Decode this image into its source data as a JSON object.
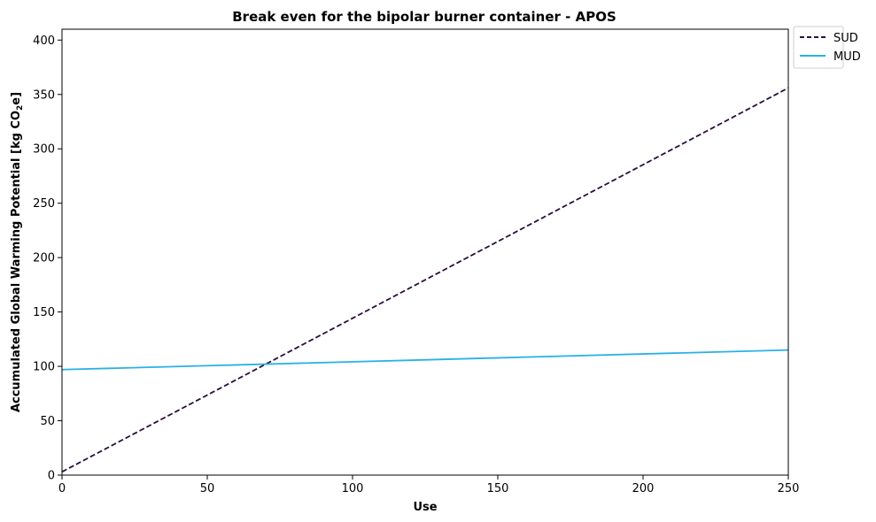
{
  "chart_data": {
    "type": "line",
    "title": "Break even for the bipolar burner container - APOS",
    "xlabel": "Use",
    "ylabel_main": "Accumulated Global Warming Potential [kg CO",
    "ylabel_sub": "2",
    "ylabel_end": "e]",
    "xlim": [
      0,
      250
    ],
    "ylim": [
      0,
      410
    ],
    "xticks": [
      0,
      50,
      100,
      150,
      200,
      250
    ],
    "yticks": [
      0,
      50,
      100,
      150,
      200,
      250,
      300,
      350,
      400
    ],
    "grid": false,
    "legend_position": "outside-top-right",
    "series": [
      {
        "name": "SUD",
        "color": "#2b0f3d",
        "style": "dashed",
        "x": [
          0,
          250
        ],
        "y": [
          3,
          356
        ]
      },
      {
        "name": "MUD",
        "color": "#29b0e6",
        "style": "solid",
        "x": [
          0,
          250
        ],
        "y": [
          97,
          115
        ]
      }
    ]
  }
}
